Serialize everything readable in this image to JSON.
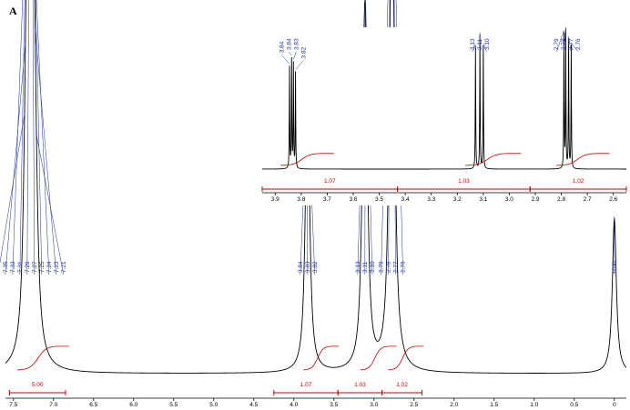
{
  "figure": {
    "panel_label": "A",
    "colors": {
      "spectrum": "#000000",
      "integration": "#c00000",
      "peak_labels": "#1c2f9a",
      "axis": "#000000"
    }
  },
  "chart_data": [
    {
      "type": "line",
      "name": "main-spectrum",
      "xlim": [
        7.6,
        -0.15
      ],
      "x_reversed": true,
      "xticks": [
        7.5,
        7.0,
        6.5,
        6.0,
        5.5,
        5.0,
        4.5,
        4.0,
        3.5,
        3.0,
        2.5,
        2.0,
        1.5,
        1.0,
        0.5,
        0.0
      ],
      "xtick_labels": [
        "7.5",
        "7.0",
        "6.5",
        "6.0",
        "5.5",
        "5.0",
        "4.5",
        "4.0",
        "3.5",
        "3.0",
        "2.5",
        "2.0",
        "1.5",
        "1.0",
        "0.5",
        "0"
      ],
      "peaks": [
        {
          "ppm": 7.36,
          "height": 0.14
        },
        {
          "ppm": 7.35,
          "height": 0.16
        },
        {
          "ppm": 7.33,
          "height": 0.46
        },
        {
          "ppm": 7.31,
          "height": 0.92
        },
        {
          "ppm": 7.29,
          "height": 0.9
        },
        {
          "ppm": 7.27,
          "height": 0.58
        },
        {
          "ppm": 7.25,
          "height": 0.37
        },
        {
          "ppm": 7.24,
          "height": 0.3
        },
        {
          "ppm": 7.23,
          "height": 0.16
        },
        {
          "ppm": 7.21,
          "height": 0.09
        },
        {
          "ppm": 3.84,
          "height": 0.36
        },
        {
          "ppm": 3.83,
          "height": 0.39
        },
        {
          "ppm": 3.82,
          "height": 0.37
        },
        {
          "ppm": 3.13,
          "height": 0.52
        },
        {
          "ppm": 3.11,
          "height": 0.56
        },
        {
          "ppm": 3.1,
          "height": 0.51
        },
        {
          "ppm": 2.79,
          "height": 0.6
        },
        {
          "ppm": 2.78,
          "height": 0.62
        },
        {
          "ppm": 2.77,
          "height": 0.55
        },
        {
          "ppm": 2.76,
          "height": 0.52
        },
        {
          "ppm": 0.0,
          "height": 0.58
        }
      ],
      "peak_labels": [
        {
          "ppm": 7.36,
          "text": "7.36"
        },
        {
          "ppm": 7.35,
          "text": "7.35"
        },
        {
          "ppm": 7.33,
          "text": "7.33"
        },
        {
          "ppm": 7.31,
          "text": "7.31"
        },
        {
          "ppm": 7.29,
          "text": "7.29"
        },
        {
          "ppm": 7.27,
          "text": "7.27"
        },
        {
          "ppm": 7.25,
          "text": "7.25"
        },
        {
          "ppm": 7.24,
          "text": "7.24"
        },
        {
          "ppm": 7.23,
          "text": "7.23"
        },
        {
          "ppm": 7.21,
          "text": "7.21"
        },
        {
          "ppm": 3.84,
          "text": "3.84"
        },
        {
          "ppm": 3.83,
          "text": "3.83"
        },
        {
          "ppm": 3.82,
          "text": "3.82"
        },
        {
          "ppm": 3.13,
          "text": "3.13"
        },
        {
          "ppm": 3.11,
          "text": "3.11"
        },
        {
          "ppm": 3.1,
          "text": "3.10"
        },
        {
          "ppm": 2.79,
          "text": "2.79"
        },
        {
          "ppm": 2.78,
          "text": "2.78"
        },
        {
          "ppm": 2.77,
          "text": "2.77"
        },
        {
          "ppm": 2.76,
          "text": "2.76"
        },
        {
          "ppm": 0.0,
          "text": "0.00"
        }
      ],
      "integrals": [
        {
          "from": 7.45,
          "to": 7.15,
          "value": "5.00",
          "bar_from": 7.55,
          "bar_to": 6.85
        },
        {
          "from": 3.88,
          "to": 3.78,
          "value": "1.07",
          "bar_from": 4.25,
          "bar_to": 3.45
        },
        {
          "from": 3.17,
          "to": 3.06,
          "value": "1.03",
          "bar_from": 3.45,
          "bar_to": 2.9
        },
        {
          "from": 2.82,
          "to": 2.72,
          "value": "1.02",
          "bar_from": 2.9,
          "bar_to": 2.4
        }
      ]
    },
    {
      "type": "line",
      "name": "inset-expansion",
      "xlim": [
        3.95,
        2.55
      ],
      "x_reversed": true,
      "xticks": [
        3.9,
        3.8,
        3.7,
        3.6,
        3.5,
        3.4,
        3.3,
        3.2,
        3.1,
        3.0,
        2.9,
        2.8,
        2.7,
        2.6
      ],
      "xtick_labels": [
        "3.9",
        "3.8",
        "3.7",
        "3.6",
        "3.5",
        "3.4",
        "3.3",
        "3.2",
        "3.1",
        "3.0",
        "2.9",
        "2.8",
        "2.7",
        "2.6"
      ],
      "peaks": [
        {
          "ppm": 3.845,
          "height": 0.74
        },
        {
          "ppm": 3.837,
          "height": 0.79
        },
        {
          "ppm": 3.83,
          "height": 0.76
        },
        {
          "ppm": 3.822,
          "height": 0.7
        },
        {
          "ppm": 3.13,
          "height": 0.9
        },
        {
          "ppm": 3.113,
          "height": 0.98
        },
        {
          "ppm": 3.1,
          "height": 0.9
        },
        {
          "ppm": 2.79,
          "height": 0.98
        },
        {
          "ppm": 2.783,
          "height": 1.0
        },
        {
          "ppm": 2.772,
          "height": 0.94
        },
        {
          "ppm": 2.762,
          "height": 0.9
        }
      ],
      "peak_labels": [
        {
          "ppm": 3.845,
          "text": "3.84"
        },
        {
          "ppm": 3.837,
          "text": "3.84"
        },
        {
          "ppm": 3.83,
          "text": "3.83"
        },
        {
          "ppm": 3.822,
          "text": "3.82"
        },
        {
          "ppm": 3.13,
          "text": "3.13"
        },
        {
          "ppm": 3.113,
          "text": "3.11"
        },
        {
          "ppm": 3.1,
          "text": "3.10"
        },
        {
          "ppm": 2.79,
          "text": "2.79"
        },
        {
          "ppm": 2.783,
          "text": "2.78"
        },
        {
          "ppm": 2.772,
          "text": "2.77"
        },
        {
          "ppm": 2.762,
          "text": "2.76"
        }
      ],
      "integrals": [
        {
          "from": 3.88,
          "to": 3.78,
          "value": "1.07",
          "bar_from": 3.95,
          "bar_to": 3.43
        },
        {
          "from": 3.17,
          "to": 3.06,
          "value": "1.03",
          "bar_from": 3.43,
          "bar_to": 2.92
        },
        {
          "from": 2.82,
          "to": 2.72,
          "value": "1.02",
          "bar_from": 2.92,
          "bar_to": 2.55
        }
      ]
    }
  ]
}
